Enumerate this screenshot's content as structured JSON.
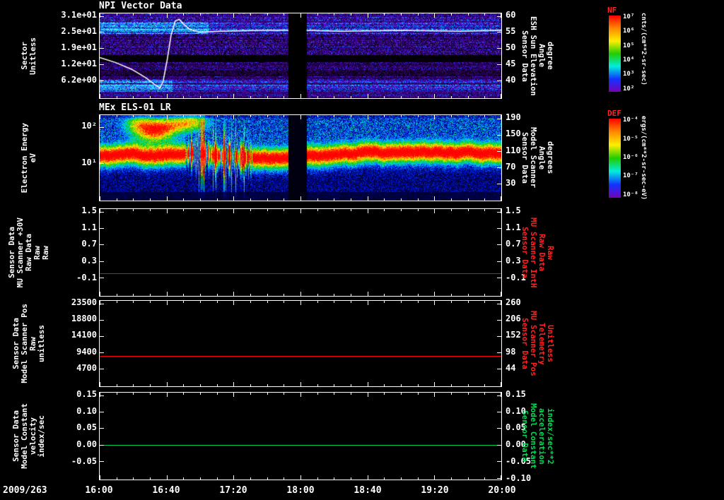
{
  "x_axis": {
    "date_label": "2009/263",
    "tick_labels": [
      "16:00",
      "16:40",
      "17:20",
      "18:00",
      "18:40",
      "19:20",
      "20:00"
    ]
  },
  "colorbars": [
    {
      "title": "NF",
      "title_color": "#ff2222",
      "unit": "cnts/(cm**2-sr-sec)",
      "tick_labels": [
        "10⁷",
        "10⁶",
        "10⁵",
        "10⁴",
        "10³",
        "10²"
      ],
      "gradient": [
        "#ff0000",
        "#ff8800",
        "#ffee00",
        "#22cc00",
        "#00eedd",
        "#1133ff",
        "#7700bb"
      ]
    },
    {
      "title": "DEF",
      "title_color": "#ff2222",
      "unit": "ergs/(cm**2-sr-sec-eV)",
      "tick_labels": [
        "10⁻⁴",
        "10⁻⁵",
        "10⁻⁶",
        "10⁻⁷",
        "10⁻⁸"
      ],
      "gradient": [
        "#ff0000",
        "#ff8800",
        "#ffee00",
        "#22cc00",
        "#00eedd",
        "#1133ff",
        "#7700bb"
      ]
    }
  ],
  "chart_data": [
    {
      "type": "spectrogram",
      "title": "NPI Vector Data",
      "left_label_lines": [
        "Sector",
        "Unitless"
      ],
      "left_ticks": [
        {
          "label": "3.1e+01",
          "value": 31,
          "f": 0.03
        },
        {
          "label": "2.5e+01",
          "value": 25,
          "f": 0.22
        },
        {
          "label": "1.9e+01",
          "value": 19,
          "f": 0.41
        },
        {
          "label": "1.2e+01",
          "value": 12,
          "f": 0.6
        },
        {
          "label": "6.2e+00",
          "value": 6.2,
          "f": 0.79
        }
      ],
      "right_ticks": [
        {
          "label": "60",
          "f": 0.03
        },
        {
          "label": "55",
          "f": 0.22
        },
        {
          "label": "50",
          "f": 0.41
        },
        {
          "label": "45",
          "f": 0.6
        },
        {
          "label": "40",
          "f": 0.79
        }
      ],
      "right_label_lines": [
        "Sensor Data",
        "ESH Sun Elevation",
        "Angle",
        "degree"
      ],
      "right_label_color": "#ffffff",
      "gap_x": [
        0.47,
        0.515
      ],
      "seed": 1234567,
      "bands": [
        {
          "y0": 0.0,
          "y1": 0.1,
          "level": 0.5,
          "var": 0.28
        },
        {
          "y0": 0.1,
          "y1": 0.24,
          "level": 0.62,
          "var": 0.26,
          "boost_x": 0.27,
          "boost": 0.25
        },
        {
          "y0": 0.24,
          "y1": 0.49,
          "level": 0.38,
          "var": 0.32
        },
        {
          "y0": 0.49,
          "y1": 0.57,
          "level": 0.03,
          "var": 0.04
        },
        {
          "y0": 0.57,
          "y1": 0.66,
          "level": 0.36,
          "var": 0.3
        },
        {
          "y0": 0.66,
          "y1": 0.74,
          "level": 0.22,
          "var": 0.26
        },
        {
          "y0": 0.74,
          "y1": 0.78,
          "level": 0.38,
          "var": 0.28
        },
        {
          "y0": 0.78,
          "y1": 0.93,
          "level": 0.62,
          "var": 0.24,
          "boost_x": 0.18,
          "boost": 0.25
        },
        {
          "y0": 0.93,
          "y1": 1.01,
          "level": 0.46,
          "var": 0.26
        }
      ],
      "colormap_stops": [
        [
          0,
          "#000000"
        ],
        [
          0.2,
          "#1a0034"
        ],
        [
          0.4,
          "#350074"
        ],
        [
          0.55,
          "#5400c8"
        ],
        [
          0.7,
          "#2442ff"
        ],
        [
          0.85,
          "#00a2ff"
        ],
        [
          1,
          "#45eaff"
        ]
      ],
      "overlay_line": {
        "color": "#ffffff",
        "points": [
          [
            0,
            0.52
          ],
          [
            0.04,
            0.58
          ],
          [
            0.08,
            0.66
          ],
          [
            0.115,
            0.76
          ],
          [
            0.14,
            0.85
          ],
          [
            0.15,
            0.88
          ],
          [
            0.158,
            0.8
          ],
          [
            0.168,
            0.55
          ],
          [
            0.178,
            0.25
          ],
          [
            0.188,
            0.09
          ],
          [
            0.198,
            0.07
          ],
          [
            0.21,
            0.13
          ],
          [
            0.225,
            0.19
          ],
          [
            0.25,
            0.22
          ],
          [
            0.3,
            0.21
          ],
          [
            0.4,
            0.2
          ],
          [
            0.47,
            0.2
          ],
          [
            0.515,
            0.2
          ],
          [
            0.6,
            0.21
          ],
          [
            0.75,
            0.2
          ],
          [
            0.9,
            0.21
          ],
          [
            1,
            0.2
          ]
        ]
      }
    },
    {
      "type": "spectrogram",
      "title": "MEx ELS-01 LR",
      "left_label_lines": [
        "Electron Energy",
        "eV"
      ],
      "left_ticks": [
        {
          "label": "10²",
          "value": 100,
          "f": 0.14
        },
        {
          "label": "10¹",
          "value": 10,
          "f": 0.56
        }
      ],
      "right_ticks": [
        {
          "label": "190",
          "f": 0.04
        },
        {
          "label": "150",
          "f": 0.23
        },
        {
          "label": "110",
          "f": 0.42
        },
        {
          "label": "70",
          "f": 0.61
        },
        {
          "label": "30",
          "f": 0.8
        }
      ],
      "right_label_lines": [
        "Sensor Data",
        "Model Scanner",
        "Angle",
        "degrees"
      ],
      "right_label_color": "#ffffff",
      "gap_x": [
        0.47,
        0.515
      ],
      "seed": 424242,
      "band": {
        "center": 0.48,
        "sigma": 0.085,
        "disturb_x": [
          0.21,
          0.38
        ],
        "blobs": [
          [
            0.1,
            0.1
          ],
          [
            0.17,
            0.13
          ],
          [
            0.13,
            0.22
          ],
          [
            0.23,
            0.08
          ]
        ]
      },
      "colormap_stops": [
        [
          0,
          "#000010"
        ],
        [
          0.08,
          "#000066"
        ],
        [
          0.18,
          "#0012d6"
        ],
        [
          0.3,
          "#0092ff"
        ],
        [
          0.4,
          "#00e0cc"
        ],
        [
          0.5,
          "#00c22e"
        ],
        [
          0.6,
          "#66dd00"
        ],
        [
          0.7,
          "#ffee00"
        ],
        [
          0.8,
          "#ff9100"
        ],
        [
          0.9,
          "#ff2500"
        ],
        [
          1,
          "#ff0000"
        ]
      ]
    },
    {
      "type": "line",
      "left_label_lines": [
        "Sensor Data",
        "MU Scanner +30V",
        "Raw Data",
        "Raw",
        "Raw"
      ],
      "left_ticks": [
        {
          "label": "1.5",
          "f": 0.03
        },
        {
          "label": "1.1",
          "f": 0.22
        },
        {
          "label": "0.7",
          "f": 0.41
        },
        {
          "label": "0.3",
          "f": 0.6
        },
        {
          "label": "-0.1",
          "f": 0.79
        }
      ],
      "right_ticks": [
        {
          "label": "1.5",
          "f": 0.03
        },
        {
          "label": "1.1",
          "f": 0.22
        },
        {
          "label": "0.7",
          "f": 0.41
        },
        {
          "label": "0.3",
          "f": 0.6
        },
        {
          "label": "-0.1",
          "f": 0.79
        }
      ],
      "right_label_lines": [
        "Sensor Data",
        "MU Scanner IntH",
        "Raw Data",
        "Raw"
      ],
      "right_label_color": "#ff2222",
      "line": {
        "color": "#ff0000",
        "value": 0.0,
        "f": 0.74
      }
    },
    {
      "type": "line",
      "left_label_lines": [
        "Sensor Data",
        "Model Scanner Pos",
        "Raw",
        "unitless"
      ],
      "left_ticks": [
        {
          "label": "23500",
          "f": 0.03
        },
        {
          "label": "18800",
          "f": 0.22
        },
        {
          "label": "14100",
          "f": 0.41
        },
        {
          "label": "9400",
          "f": 0.6
        },
        {
          "label": "4700",
          "f": 0.79
        }
      ],
      "right_ticks": [
        {
          "label": "260",
          "f": 0.03
        },
        {
          "label": "206",
          "f": 0.22
        },
        {
          "label": "152",
          "f": 0.41
        },
        {
          "label": "98",
          "f": 0.6
        },
        {
          "label": "44",
          "f": 0.79
        }
      ],
      "right_label_lines": [
        "Sensor Data",
        "MU Scanner Pos",
        "Telemetry",
        "Unitless"
      ],
      "right_label_color": "#ff2222",
      "line": {
        "color": "#ff0000",
        "value": 8300,
        "f": 0.645
      }
    },
    {
      "type": "line",
      "left_label_lines": [
        "Sensor Data",
        "Model Constant",
        "velocity",
        "index/sec"
      ],
      "left_ticks": [
        {
          "label": "0.15",
          "f": 0.03
        },
        {
          "label": "0.10",
          "f": 0.22
        },
        {
          "label": "0.05",
          "f": 0.41
        },
        {
          "label": "0.00",
          "f": 0.6
        },
        {
          "label": "-0.05",
          "f": 0.79
        }
      ],
      "right_ticks": [
        {
          "label": "0.15",
          "f": 0.03
        },
        {
          "label": "0.10",
          "f": 0.22
        },
        {
          "label": "0.05",
          "f": 0.41
        },
        {
          "label": "0.00",
          "f": 0.6
        },
        {
          "label": "-0.05",
          "f": 0.79
        },
        {
          "label": "-0.10",
          "f": 0.98
        }
      ],
      "right_label_lines": [
        "Sensor Data",
        "Model Constant",
        "acceleration",
        "index/sec**2"
      ],
      "right_label_color": "#00dd55",
      "line": {
        "color": "#00cc55",
        "value": 0.0,
        "f": 0.6
      }
    }
  ]
}
